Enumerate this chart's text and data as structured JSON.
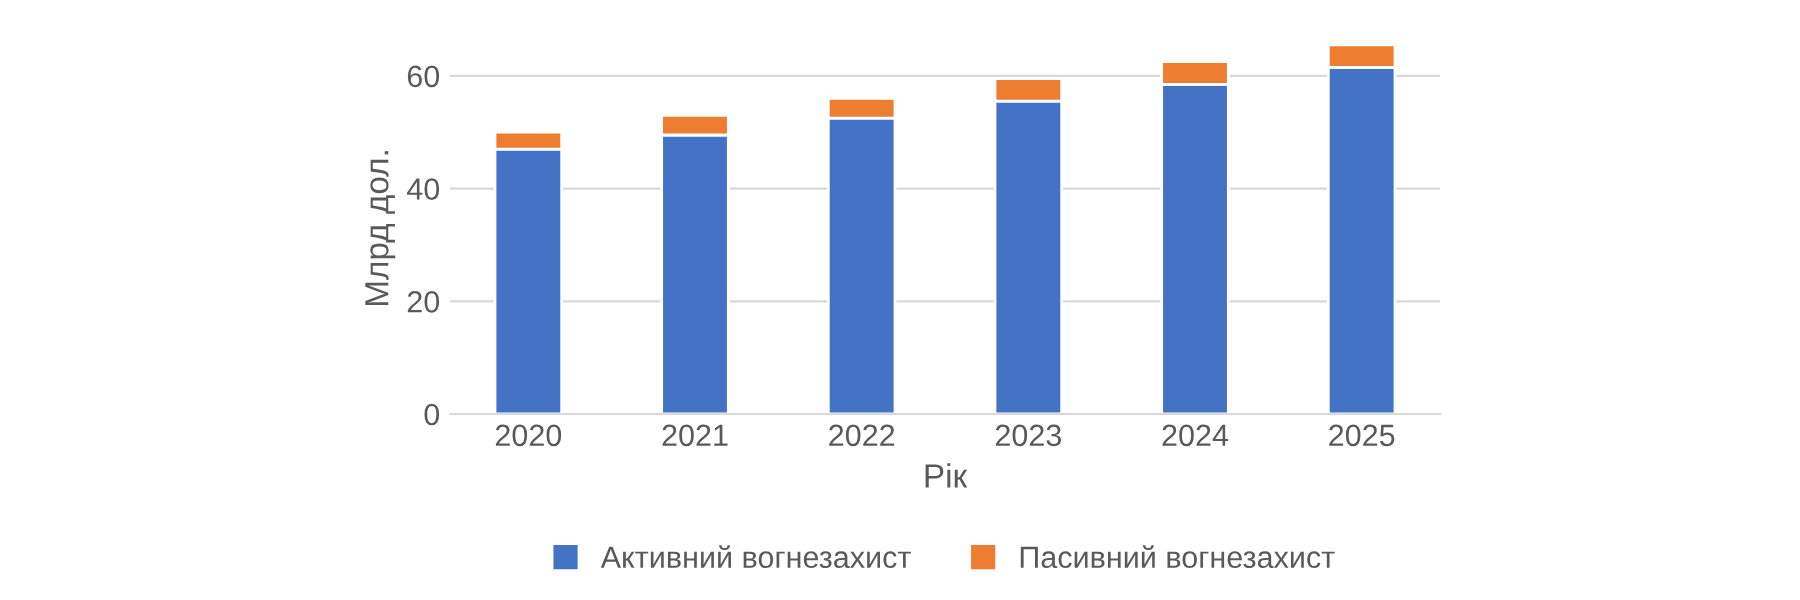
{
  "chart_data": {
    "type": "bar",
    "stacked": true,
    "xlabel": "Рік",
    "ylabel": "Млрд дол.",
    "categories": [
      "2020",
      "2021",
      "2022",
      "2023",
      "2024",
      "2025"
    ],
    "series": [
      {
        "name": "Активний вогнезахист",
        "color": "#4472c4",
        "values": [
          47,
          49.5,
          52.5,
          55.5,
          58.5,
          61.5
        ]
      },
      {
        "name": "Пасивний вогнезахист",
        "color": "#ed7d31",
        "values": [
          3,
          3.5,
          3.5,
          4,
          4,
          4
        ]
      }
    ],
    "ylim": [
      0,
      66
    ],
    "yticks": [
      0,
      20,
      40,
      60
    ],
    "grid": "y",
    "legend": "bottom"
  }
}
